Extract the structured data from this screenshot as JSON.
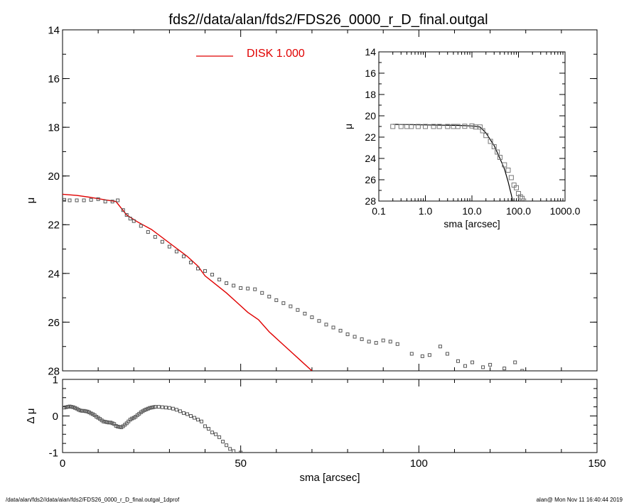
{
  "title": "fds2//data/alan/fds2/FDS26_0000_r_D_final.outgal",
  "footer": {
    "left": "/data/alan/fds2//data/alan/fds2/FDS26_0000_r_D_final.outgal_1dprof",
    "right": "alan@  Mon Nov 11 16:40:44 2019"
  },
  "colors": {
    "model": "#e00000",
    "data": "#555555",
    "axis": "#000000"
  },
  "chart_data": [
    {
      "id": "main_profile",
      "type": "scatter",
      "xlabel": "sma [arcsec]",
      "ylabel": "μ",
      "xlim": [
        0,
        150
      ],
      "ylim": [
        28,
        14
      ],
      "y_inverted": true,
      "x_ticks": [
        "0",
        "50",
        "100",
        "150"
      ],
      "y_ticks": [
        "14",
        "16",
        "18",
        "20",
        "22",
        "24",
        "26",
        "28"
      ],
      "legend": {
        "position": "top-center",
        "entries": [
          {
            "name": "DISK  1.000",
            "style": "line",
            "color": "#e00000"
          }
        ]
      },
      "series": [
        {
          "name": "DISK  1.000",
          "kind": "line",
          "color": "#e00000",
          "points": [
            [
              0,
              20.75
            ],
            [
              4,
              20.8
            ],
            [
              8,
              20.88
            ],
            [
              12,
              20.98
            ],
            [
              15,
              21.05
            ],
            [
              18,
              21.6
            ],
            [
              21,
              21.88
            ],
            [
              25,
              22.2
            ],
            [
              30,
              22.75
            ],
            [
              35,
              23.3
            ],
            [
              38,
              23.7
            ],
            [
              40,
              24.1
            ],
            [
              43,
              24.45
            ],
            [
              46,
              24.8
            ],
            [
              49,
              25.2
            ],
            [
              52,
              25.6
            ],
            [
              55,
              25.9
            ],
            [
              58,
              26.4
            ],
            [
              61,
              26.8
            ],
            [
              64,
              27.2
            ],
            [
              67,
              27.6
            ],
            [
              70,
              28.0
            ]
          ]
        },
        {
          "name": "data",
          "kind": "points",
          "color": "#555555",
          "points": [
            [
              0.5,
              20.98
            ],
            [
              2,
              21.0
            ],
            [
              4,
              21.0
            ],
            [
              6,
              21.0
            ],
            [
              8,
              20.98
            ],
            [
              10,
              20.95
            ],
            [
              12,
              21.05
            ],
            [
              14,
              21.05
            ],
            [
              15.5,
              21.0
            ],
            [
              17,
              21.4
            ],
            [
              18,
              21.6
            ],
            [
              19,
              21.75
            ],
            [
              20,
              21.85
            ],
            [
              22,
              22.05
            ],
            [
              24,
              22.3
            ],
            [
              26,
              22.5
            ],
            [
              28,
              22.7
            ],
            [
              30,
              22.9
            ],
            [
              32,
              23.1
            ],
            [
              34,
              23.3
            ],
            [
              36,
              23.55
            ],
            [
              38,
              23.8
            ],
            [
              40,
              23.9
            ],
            [
              42,
              24.05
            ],
            [
              44,
              24.25
            ],
            [
              46,
              24.4
            ],
            [
              48,
              24.5
            ],
            [
              50,
              24.6
            ],
            [
              52,
              24.62
            ],
            [
              54,
              24.65
            ],
            [
              56,
              24.8
            ],
            [
              58,
              24.95
            ],
            [
              60,
              25.1
            ],
            [
              62,
              25.22
            ],
            [
              64,
              25.35
            ],
            [
              66,
              25.5
            ],
            [
              68,
              25.65
            ],
            [
              70,
              25.8
            ],
            [
              72,
              25.95
            ],
            [
              74,
              26.1
            ],
            [
              76,
              26.22
            ],
            [
              78,
              26.35
            ],
            [
              80,
              26.5
            ],
            [
              82,
              26.6
            ],
            [
              84,
              26.7
            ],
            [
              86,
              26.8
            ],
            [
              88,
              26.85
            ],
            [
              90,
              26.75
            ],
            [
              92,
              26.8
            ],
            [
              94,
              26.9
            ],
            [
              98,
              27.3
            ],
            [
              101,
              27.4
            ],
            [
              103,
              27.35
            ],
            [
              106,
              27.0
            ],
            [
              108,
              27.3
            ],
            [
              111,
              27.6
            ],
            [
              113,
              27.8
            ],
            [
              115,
              27.65
            ],
            [
              118,
              27.85
            ],
            [
              120,
              27.75
            ],
            [
              124,
              27.9
            ],
            [
              127,
              27.65
            ],
            [
              129,
              28.0
            ]
          ]
        }
      ]
    },
    {
      "id": "residual",
      "type": "scatter",
      "xlabel": "sma [arcsec]",
      "ylabel": "Δ μ",
      "xlim": [
        0,
        150
      ],
      "ylim": [
        -1,
        1
      ],
      "x_ticks": [
        "0",
        "50",
        "100",
        "150"
      ],
      "y_ticks": [
        "1",
        "0",
        "-1"
      ],
      "series": [
        {
          "name": "residual",
          "kind": "points",
          "color": "#555555",
          "points": [
            [
              0.5,
              0.23
            ],
            [
              1,
              0.24
            ],
            [
              1.5,
              0.25
            ],
            [
              2,
              0.26
            ],
            [
              2.5,
              0.25
            ],
            [
              3,
              0.24
            ],
            [
              3.5,
              0.22
            ],
            [
              4,
              0.2
            ],
            [
              4.5,
              0.17
            ],
            [
              5,
              0.15
            ],
            [
              5.5,
              0.14
            ],
            [
              6,
              0.14
            ],
            [
              6.5,
              0.13
            ],
            [
              7,
              0.12
            ],
            [
              7.5,
              0.1
            ],
            [
              8,
              0.07
            ],
            [
              8.5,
              0.05
            ],
            [
              9,
              0.02
            ],
            [
              9.5,
              -0.02
            ],
            [
              10,
              -0.05
            ],
            [
              10.5,
              -0.08
            ],
            [
              11,
              -0.12
            ],
            [
              11.5,
              -0.15
            ],
            [
              12,
              -0.16
            ],
            [
              12.5,
              -0.17
            ],
            [
              13,
              -0.18
            ],
            [
              13.5,
              -0.18
            ],
            [
              14,
              -0.2
            ],
            [
              14.5,
              -0.22
            ],
            [
              15,
              -0.27
            ],
            [
              15.5,
              -0.29
            ],
            [
              16,
              -0.3
            ],
            [
              16.5,
              -0.31
            ],
            [
              17,
              -0.28
            ],
            [
              17.5,
              -0.24
            ],
            [
              18,
              -0.2
            ],
            [
              18.5,
              -0.15
            ],
            [
              19,
              -0.1
            ],
            [
              19.5,
              -0.07
            ],
            [
              20,
              -0.05
            ],
            [
              20.5,
              -0.02
            ],
            [
              21,
              0.02
            ],
            [
              21.5,
              0.06
            ],
            [
              22,
              0.1
            ],
            [
              22.5,
              0.13
            ],
            [
              23,
              0.16
            ],
            [
              23.5,
              0.18
            ],
            [
              24,
              0.2
            ],
            [
              24.5,
              0.22
            ],
            [
              25,
              0.23
            ],
            [
              25.5,
              0.24
            ],
            [
              26,
              0.25
            ],
            [
              27,
              0.25
            ],
            [
              28,
              0.24
            ],
            [
              29,
              0.23
            ],
            [
              30,
              0.22
            ],
            [
              31,
              0.2
            ],
            [
              32,
              0.17
            ],
            [
              33,
              0.13
            ],
            [
              34,
              0.08
            ],
            [
              35,
              0.05
            ],
            [
              36,
              0.0
            ],
            [
              37,
              -0.05
            ],
            [
              38,
              -0.1
            ],
            [
              39,
              -0.15
            ],
            [
              40,
              -0.28
            ],
            [
              41,
              -0.35
            ],
            [
              42,
              -0.45
            ],
            [
              43,
              -0.5
            ],
            [
              44,
              -0.58
            ],
            [
              45,
              -0.7
            ],
            [
              46,
              -0.8
            ],
            [
              47,
              -0.9
            ],
            [
              48,
              -0.96
            ],
            [
              50,
              -1.0
            ]
          ]
        }
      ]
    },
    {
      "id": "inset",
      "type": "scatter",
      "xlabel": "sma [arcsec]",
      "ylabel": "μ",
      "x_scale": "log",
      "xlim": [
        0.1,
        1000
      ],
      "ylim": [
        28,
        14
      ],
      "y_inverted": true,
      "x_ticks": [
        "0.1",
        "1.0",
        "10.0",
        "100.0",
        "1000.0"
      ],
      "y_ticks": [
        "14",
        "16",
        "18",
        "20",
        "22",
        "24",
        "26",
        "28"
      ],
      "series": [
        {
          "name": "model",
          "kind": "line",
          "color": "#000000",
          "points": [
            [
              0.2,
              20.8
            ],
            [
              1,
              20.85
            ],
            [
              5,
              20.9
            ],
            [
              10,
              20.95
            ],
            [
              15,
              21.05
            ],
            [
              20,
              21.6
            ],
            [
              30,
              22.8
            ],
            [
              40,
              24.0
            ],
            [
              50,
              25.0
            ],
            [
              60,
              26.2
            ],
            [
              70,
              27.4
            ],
            [
              75,
              28.0
            ]
          ]
        },
        {
          "name": "data",
          "kind": "points",
          "color": "#777777",
          "points": [
            [
              0.2,
              21.0
            ],
            [
              0.3,
              21.0
            ],
            [
              0.4,
              21.0
            ],
            [
              0.5,
              21.0
            ],
            [
              0.7,
              21.0
            ],
            [
              1,
              21.0
            ],
            [
              1.5,
              21.0
            ],
            [
              2,
              21.0
            ],
            [
              3,
              21.0
            ],
            [
              4,
              21.0
            ],
            [
              5,
              21.0
            ],
            [
              7,
              20.98
            ],
            [
              10,
              20.95
            ],
            [
              12,
              21.05
            ],
            [
              15,
              21.05
            ],
            [
              17,
              21.4
            ],
            [
              20,
              21.85
            ],
            [
              25,
              22.4
            ],
            [
              30,
              22.9
            ],
            [
              35,
              23.4
            ],
            [
              40,
              23.9
            ],
            [
              50,
              24.6
            ],
            [
              60,
              25.1
            ],
            [
              70,
              25.8
            ],
            [
              80,
              26.5
            ],
            [
              90,
              26.75
            ],
            [
              100,
              27.3
            ],
            [
              110,
              27.6
            ],
            [
              120,
              27.75
            ],
            [
              129,
              28.0
            ]
          ]
        }
      ]
    }
  ]
}
